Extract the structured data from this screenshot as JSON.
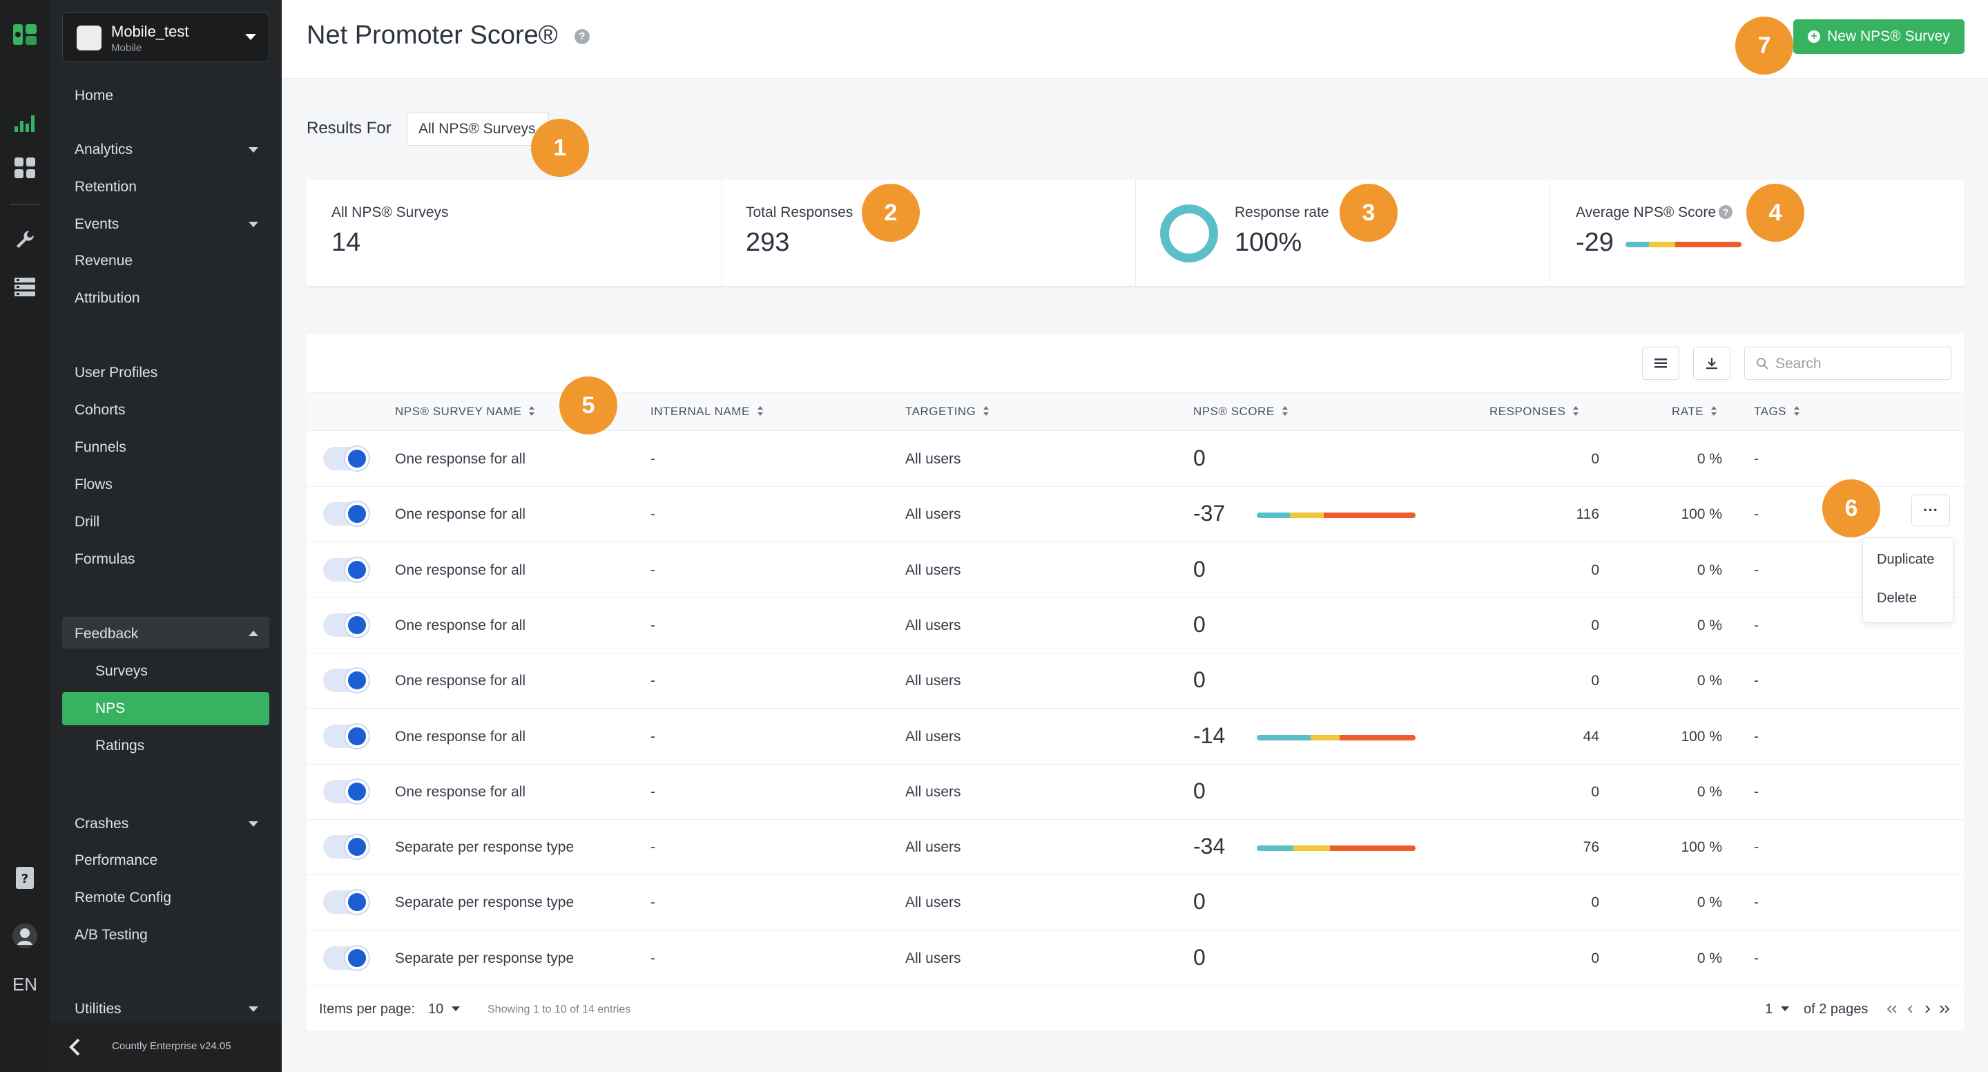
{
  "app": {
    "name": "Mobile_test",
    "type": "Mobile",
    "version": "Countly Enterprise v24.05",
    "language": "EN"
  },
  "sidebar": {
    "items": [
      {
        "label": "Home"
      },
      {
        "label": "Analytics"
      },
      {
        "label": "Retention"
      },
      {
        "label": "Events"
      },
      {
        "label": "Revenue"
      },
      {
        "label": "Attribution"
      },
      {
        "label": "User Profiles"
      },
      {
        "label": "Cohorts"
      },
      {
        "label": "Funnels"
      },
      {
        "label": "Flows"
      },
      {
        "label": "Drill"
      },
      {
        "label": "Formulas"
      },
      {
        "label": "Feedback"
      },
      {
        "label": "Surveys"
      },
      {
        "label": "NPS"
      },
      {
        "label": "Ratings"
      },
      {
        "label": "Crashes"
      },
      {
        "label": "Performance"
      },
      {
        "label": "Remote Config"
      },
      {
        "label": "A/B Testing"
      },
      {
        "label": "Utilities"
      }
    ]
  },
  "header": {
    "title": "Net Promoter Score®",
    "help": "?",
    "new_button": "New NPS® Survey",
    "new_icon": "+"
  },
  "filter": {
    "label": "Results For",
    "selected": "All NPS® Surveys"
  },
  "stats": {
    "surveys_label": "All NPS® Surveys",
    "surveys_value": "14",
    "responses_label": "Total Responses",
    "responses_value": "293",
    "rate_label": "Response rate",
    "rate_value": "100%",
    "avg_label": "Average NPS® Score",
    "avg_value": "-29",
    "avg_help": "?"
  },
  "toolbar": {
    "search_placeholder": "Search"
  },
  "table": {
    "columns": [
      "NPS® SURVEY NAME",
      "INTERNAL NAME",
      "TARGETING",
      "NPS® SCORE",
      "RESPONSES",
      "RATE",
      "TAGS"
    ],
    "rows": [
      {
        "name": "One response for all",
        "internal": "-",
        "targeting": "All users",
        "score": "0",
        "responses": "0",
        "rate": "0 %",
        "tags": "-",
        "enabled": true
      },
      {
        "name": "One response for all",
        "internal": "-",
        "targeting": "All users",
        "score": "-37",
        "responses": "116",
        "rate": "100 %",
        "tags": "-",
        "enabled": true
      },
      {
        "name": "One response for all",
        "internal": "-",
        "targeting": "All users",
        "score": "0",
        "responses": "0",
        "rate": "0 %",
        "tags": "-",
        "enabled": true
      },
      {
        "name": "One response for all",
        "internal": "-",
        "targeting": "All users",
        "score": "0",
        "responses": "0",
        "rate": "0 %",
        "tags": "-",
        "enabled": true
      },
      {
        "name": "One response for all",
        "internal": "-",
        "targeting": "All users",
        "score": "0",
        "responses": "0",
        "rate": "0 %",
        "tags": "-",
        "enabled": true
      },
      {
        "name": "One response for all",
        "internal": "-",
        "targeting": "All users",
        "score": "-14",
        "responses": "44",
        "rate": "100 %",
        "tags": "-",
        "enabled": true
      },
      {
        "name": "One response for all",
        "internal": "-",
        "targeting": "All users",
        "score": "0",
        "responses": "0",
        "rate": "0 %",
        "tags": "-",
        "enabled": true
      },
      {
        "name": "Separate per response type",
        "internal": "-",
        "targeting": "All users",
        "score": "-34",
        "responses": "76",
        "rate": "100 %",
        "tags": "-",
        "enabled": true
      },
      {
        "name": "Separate per response type",
        "internal": "-",
        "targeting": "All users",
        "score": "0",
        "responses": "0",
        "rate": "0 %",
        "tags": "-",
        "enabled": true
      },
      {
        "name": "Separate per response type",
        "internal": "-",
        "targeting": "All users",
        "score": "0",
        "responses": "0",
        "rate": "0 %",
        "tags": "-",
        "enabled": true
      }
    ]
  },
  "row_menu": {
    "more": "···",
    "duplicate": "Duplicate",
    "delete": "Delete"
  },
  "pagination": {
    "items_per_page_label": "Items per page:",
    "items_per_page": "10",
    "showing": "Showing 1 to 10 of 14 entries",
    "page": "1",
    "of_pages": "of 2 pages"
  },
  "callouts": [
    "1",
    "2",
    "3",
    "4",
    "5",
    "6",
    "7"
  ],
  "colors": {
    "accent": "#36b260",
    "callout": "#f0982e",
    "detractor": "#ec5d2b",
    "passive": "#f0c63b",
    "promoter": "#5bbfca",
    "toggle": "#1c5fd4"
  }
}
